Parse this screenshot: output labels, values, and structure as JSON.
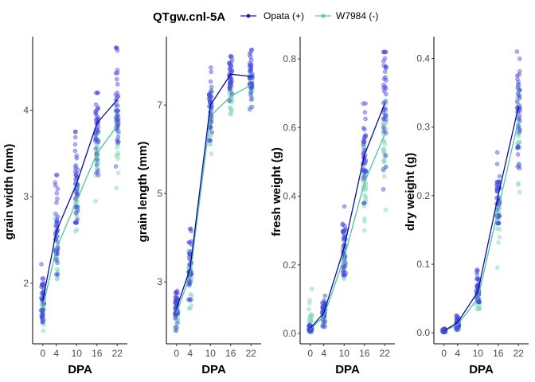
{
  "legend": {
    "title": "QTgw.cnl-5A",
    "position": "top",
    "items": [
      {
        "label": "Opata (+)",
        "color": "#1a1ab8"
      },
      {
        "label": "W7984 (-)",
        "color": "#5ec9a4"
      }
    ]
  },
  "colors": {
    "opata_points": "#4a4ae0",
    "w7984_points": "#7fd8b8",
    "opata_line": "#0b0ba8",
    "w7984_line": "#4fc39c"
  },
  "chart_data": [
    {
      "type": "scatter",
      "xlabel": "DPA",
      "ylabel": "grain width (mm)",
      "x_ticks": [
        0,
        4,
        10,
        16,
        22
      ],
      "y_ticks": [
        2,
        3,
        4
      ],
      "xlim": [
        -3,
        25
      ],
      "ylim": [
        1.3,
        4.85
      ],
      "grid": false,
      "series": [
        {
          "name": "Opata (+)",
          "x": [
            0,
            4,
            10,
            16,
            22
          ],
          "y": [
            1.8,
            2.6,
            3.15,
            3.85,
            4.12
          ],
          "y_min": [
            1.55,
            2.1,
            2.7,
            3.25,
            3.35
          ],
          "y_max": [
            2.22,
            3.25,
            3.75,
            4.2,
            4.72
          ]
        },
        {
          "name": "W7984 (-)",
          "x": [
            0,
            4,
            10,
            16,
            22
          ],
          "y": [
            1.72,
            2.4,
            2.95,
            3.5,
            3.82
          ],
          "y_min": [
            1.45,
            2.05,
            2.6,
            2.95,
            3.1
          ],
          "y_max": [
            1.95,
            2.75,
            3.35,
            3.75,
            4.0
          ]
        }
      ]
    },
    {
      "type": "scatter",
      "xlabel": "DPA",
      "ylabel": "grain length (mm)",
      "x_ticks": [
        0,
        4,
        10,
        16,
        22
      ],
      "y_ticks": [
        3,
        5,
        7
      ],
      "xlim": [
        -3,
        25
      ],
      "ylim": [
        1.6,
        8.55
      ],
      "grid": false,
      "series": [
        {
          "name": "Opata (+)",
          "x": [
            0,
            4,
            10,
            16,
            22
          ],
          "y": [
            2.4,
            3.3,
            7.0,
            7.7,
            7.65
          ],
          "y_min": [
            1.9,
            2.6,
            6.2,
            7.1,
            6.9
          ],
          "y_max": [
            2.8,
            4.2,
            7.85,
            8.1,
            8.25
          ]
        },
        {
          "name": "W7984 (-)",
          "x": [
            0,
            4,
            10,
            16,
            22
          ],
          "y": [
            2.3,
            3.15,
            6.75,
            7.2,
            7.45
          ],
          "y_min": [
            1.9,
            2.4,
            5.9,
            6.8,
            6.95
          ],
          "y_max": [
            2.6,
            3.7,
            7.3,
            7.6,
            7.7
          ]
        }
      ]
    },
    {
      "type": "scatter",
      "xlabel": "DPA",
      "ylabel": "fresh weight (g)",
      "x_ticks": [
        0,
        4,
        10,
        16,
        22
      ],
      "x_tick_labels": [
        "0",
        "4",
        "10",
        "16",
        "22"
      ],
      "y_ticks": [
        0.0,
        0.2,
        0.4,
        0.6,
        0.8
      ],
      "y_tick_labels": [
        "0.0",
        "0.2",
        "0.4",
        "0.6",
        "0.8"
      ],
      "xlim": [
        -3,
        25
      ],
      "ylim": [
        -0.03,
        0.865
      ],
      "grid": false,
      "series": [
        {
          "name": "Opata (+)",
          "x": [
            0,
            4,
            10,
            16,
            22
          ],
          "y": [
            0.015,
            0.06,
            0.25,
            0.52,
            0.67
          ],
          "y_min": [
            0.005,
            0.02,
            0.17,
            0.38,
            0.42
          ],
          "y_max": [
            0.025,
            0.11,
            0.37,
            0.67,
            0.82
          ]
        },
        {
          "name": "W7984 (-)",
          "x": [
            0,
            4,
            10,
            16,
            22
          ],
          "y": [
            0.013,
            0.05,
            0.22,
            0.44,
            0.58
          ],
          "y_min": [
            0.005,
            0.02,
            0.16,
            0.3,
            0.36
          ],
          "y_max": [
            0.13,
            0.09,
            0.3,
            0.55,
            0.67
          ]
        }
      ]
    },
    {
      "type": "scatter",
      "xlabel": "DPA",
      "ylabel": "dry weight (g)",
      "x_ticks": [
        0,
        4,
        10,
        16,
        22
      ],
      "y_ticks": [
        0.0,
        0.1,
        0.2,
        0.3,
        0.4
      ],
      "y_tick_labels": [
        "0.0",
        "0.1",
        "0.2",
        "0.3",
        "0.4"
      ],
      "xlim": [
        -3,
        25
      ],
      "ylim": [
        -0.016,
        0.432
      ],
      "grid": false,
      "series": [
        {
          "name": "Opata (+)",
          "x": [
            0,
            4,
            10,
            16,
            22
          ],
          "y": [
            0.003,
            0.015,
            0.06,
            0.2,
            0.33
          ],
          "y_min": [
            0.001,
            0.005,
            0.045,
            0.16,
            0.24
          ],
          "y_max": [
            0.006,
            0.025,
            0.092,
            0.263,
            0.41
          ]
        },
        {
          "name": "W7984 (-)",
          "x": [
            0,
            4,
            10,
            16,
            22
          ],
          "y": [
            0.003,
            0.012,
            0.05,
            0.18,
            0.31
          ],
          "y_min": [
            0.001,
            0.004,
            0.035,
            0.095,
            0.205
          ],
          "y_max": [
            0.005,
            0.02,
            0.07,
            0.22,
            0.36
          ]
        }
      ]
    }
  ]
}
